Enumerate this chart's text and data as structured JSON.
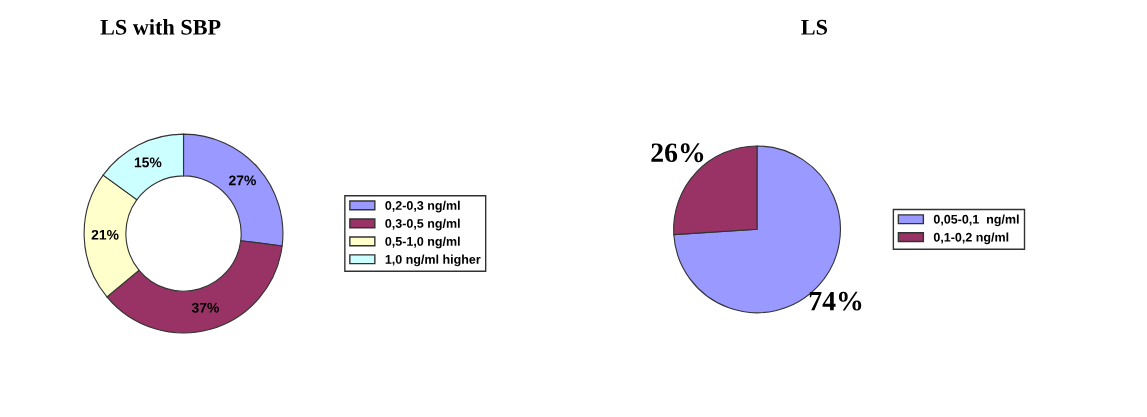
{
  "chart_data": [
    {
      "type": "donut",
      "title": "LS with SBP",
      "categories": [
        "0,2-0,3 ng/ml",
        "0,3-0,5 ng/ml",
        "0,5-1,0 ng/ml",
        "1,0 ng/ml higher"
      ],
      "values": [
        27,
        37,
        21,
        15
      ],
      "colors": [
        "#9999ff",
        "#993366",
        "#ffffcc",
        "#ccffff"
      ],
      "value_labels": [
        "27%",
        "37%",
        "21%",
        "15%"
      ],
      "legend": "right"
    },
    {
      "type": "pie",
      "title": "LS",
      "categories": [
        "0,05-0,1  ng/ml",
        "0,1-0,2 ng/ml"
      ],
      "values": [
        74,
        26
      ],
      "colors": [
        "#9999ff",
        "#993366"
      ],
      "value_labels": [
        "74%",
        "26%"
      ],
      "legend": "right"
    }
  ]
}
